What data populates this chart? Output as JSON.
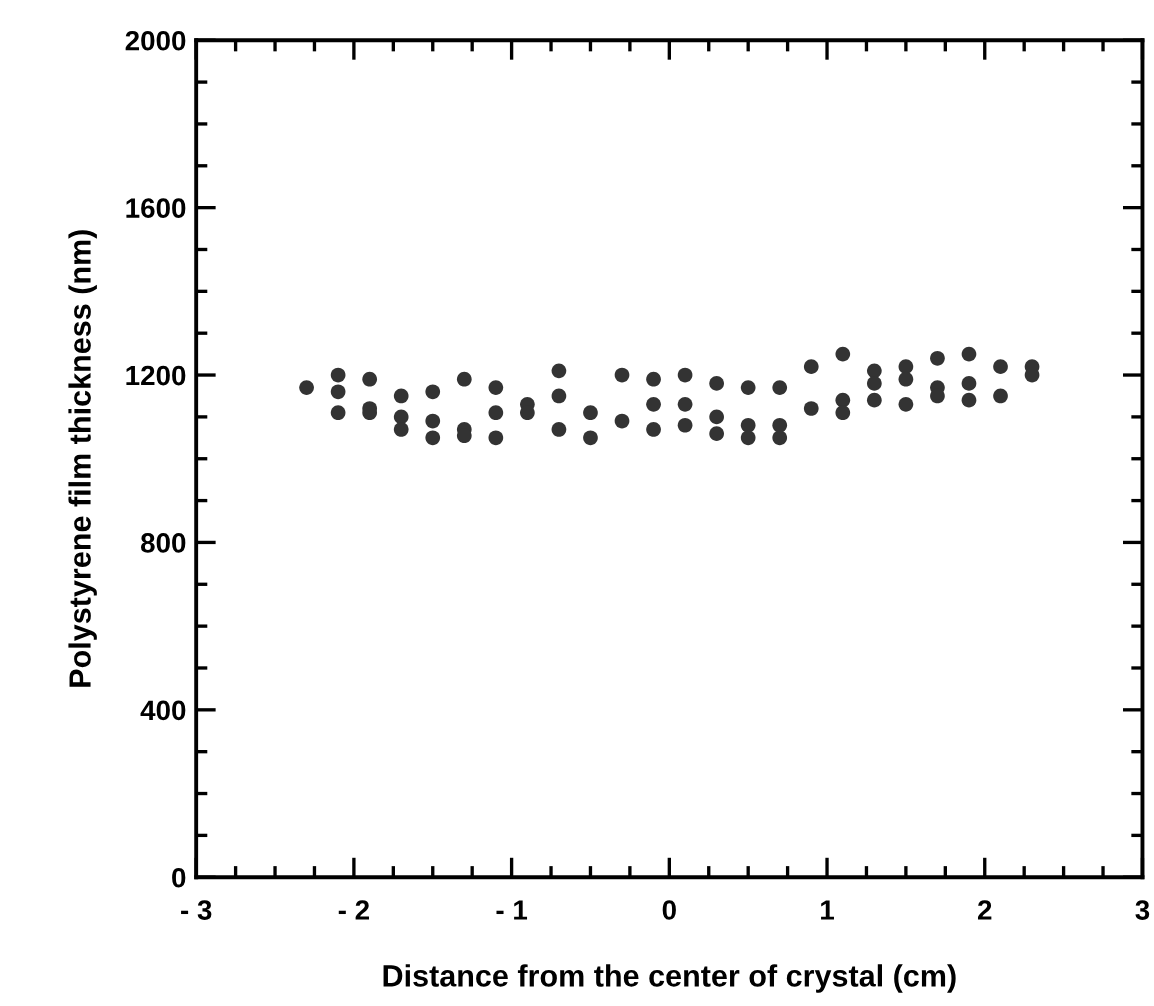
{
  "chart_data": {
    "type": "scatter",
    "xlabel": "Distance from the center of crystal (cm)",
    "ylabel": "Polystyrene film thickness (nm)",
    "xlim": [
      -3,
      3
    ],
    "ylim": [
      0,
      2000
    ],
    "xticks": [
      {
        "value": -3,
        "label": "- 3"
      },
      {
        "value": -2,
        "label": "- 2"
      },
      {
        "value": -1,
        "label": "- 1"
      },
      0,
      1,
      2,
      3
    ],
    "yticks": [
      0,
      400,
      800,
      1200,
      1600,
      2000
    ],
    "marker": "circle",
    "grid": false,
    "series": [
      {
        "color": "#333333",
        "x": [
          -2.3,
          -2.1,
          -2.1,
          -2.1,
          -1.9,
          -1.9,
          -1.9,
          -1.7,
          -1.7,
          -1.7,
          -1.5,
          -1.5,
          -1.5,
          -1.3,
          -1.3,
          -1.3,
          -1.1,
          -1.1,
          -1.1,
          -0.9,
          -0.9,
          -0.7,
          -0.7,
          -0.7,
          -0.5,
          -0.5,
          -0.3,
          -0.3,
          -0.1,
          -0.1,
          -0.1,
          0.1,
          0.1,
          0.1,
          0.3,
          0.3,
          0.3,
          0.5,
          0.5,
          0.5,
          0.7,
          0.7,
          0.7,
          0.9,
          0.9,
          1.1,
          1.1,
          1.1,
          1.3,
          1.3,
          1.3,
          1.5,
          1.5,
          1.5,
          1.7,
          1.7,
          1.7,
          1.9,
          1.9,
          1.9,
          2.1,
          2.1,
          2.3,
          2.3
        ],
        "values": [
          1170,
          1200,
          1160,
          1110,
          1190,
          1120,
          1110,
          1150,
          1100,
          1070,
          1160,
          1090,
          1050,
          1190,
          1070,
          1055,
          1170,
          1110,
          1050,
          1130,
          1110,
          1210,
          1150,
          1070,
          1110,
          1050,
          1200,
          1090,
          1190,
          1130,
          1070,
          1200,
          1130,
          1080,
          1180,
          1100,
          1060,
          1170,
          1080,
          1050,
          1170,
          1080,
          1050,
          1220,
          1120,
          1250,
          1140,
          1110,
          1210,
          1180,
          1140,
          1220,
          1190,
          1130,
          1240,
          1170,
          1150,
          1250,
          1180,
          1140,
          1220,
          1150,
          1220,
          1200
        ]
      }
    ]
  }
}
